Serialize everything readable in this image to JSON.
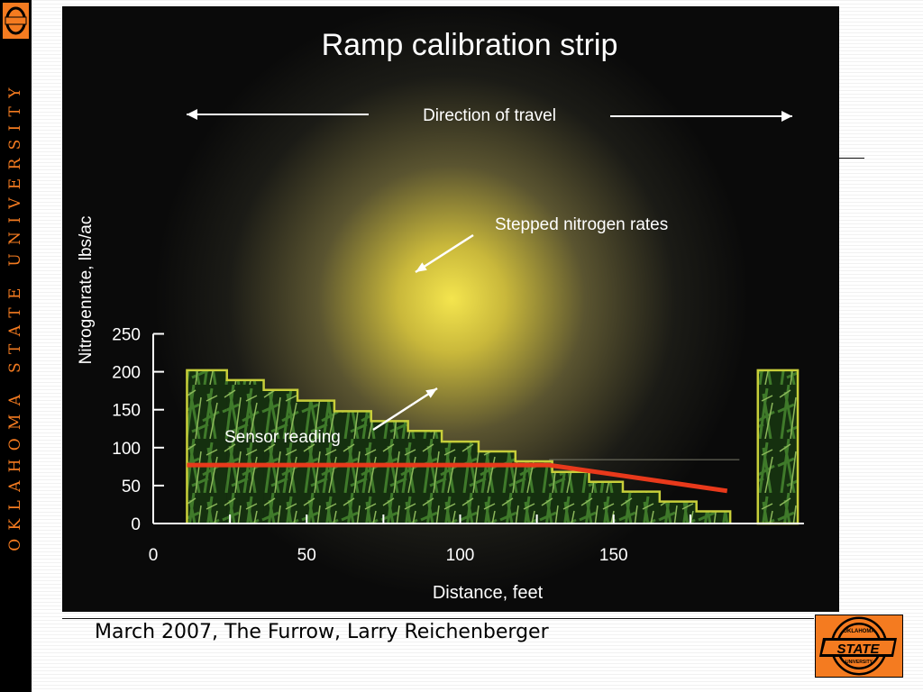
{
  "sidebar": {
    "text": "OKLAHOMA STATE UNIVERSITY"
  },
  "caption": "March 2007, The Furrow, Larry Reichenberger",
  "logo": {
    "top_text": "OKLAHOMA",
    "main_text": "STATE",
    "bottom_text": "UNIVERSITY"
  },
  "colors": {
    "accent": "#f47b20",
    "sensor_line": "#e8391b",
    "steps": "#c8cf3a",
    "glow": "#f2e24a",
    "background": "#0b0b0b"
  },
  "chart_data": {
    "type": "line",
    "title": "Ramp calibration strip",
    "xlabel": "Distance, feet",
    "ylabel": "Nitrogenrate, lbs/ac",
    "xlim": [
      0,
      200
    ],
    "ylim": [
      0,
      250
    ],
    "x_ticks": [
      0,
      50,
      100,
      150
    ],
    "y_ticks": [
      0,
      50,
      100,
      150,
      200,
      250
    ],
    "grid": false,
    "annotations": {
      "direction": "Direction of travel",
      "steps_label": "Stepped nitrogen rates",
      "sensor_label": "Sensor reading"
    },
    "series": [
      {
        "name": "Stepped nitrogen rates",
        "steps": [
          {
            "x0": 11,
            "x1": 24,
            "y": 202
          },
          {
            "x0": 24,
            "x1": 36,
            "y": 189
          },
          {
            "x0": 36,
            "x1": 47,
            "y": 176
          },
          {
            "x0": 47,
            "x1": 59,
            "y": 162
          },
          {
            "x0": 59,
            "x1": 71,
            "y": 148
          },
          {
            "x0": 71,
            "x1": 83,
            "y": 135
          },
          {
            "x0": 83,
            "x1": 94,
            "y": 122
          },
          {
            "x0": 94,
            "x1": 106,
            "y": 108
          },
          {
            "x0": 106,
            "x1": 118,
            "y": 95
          },
          {
            "x0": 118,
            "x1": 130,
            "y": 82
          },
          {
            "x0": 130,
            "x1": 142,
            "y": 68
          },
          {
            "x0": 142,
            "x1": 153,
            "y": 55
          },
          {
            "x0": 153,
            "x1": 165,
            "y": 42
          },
          {
            "x0": 165,
            "x1": 177,
            "y": 29
          },
          {
            "x0": 177,
            "x1": 188,
            "y": 16
          }
        ]
      },
      {
        "name": "Sensor reading",
        "x": [
          11,
          129,
          187
        ],
        "y": [
          77,
          77,
          43
        ]
      }
    ],
    "reference_strip": {
      "x0": 197,
      "x1": 210,
      "y": 202
    }
  }
}
